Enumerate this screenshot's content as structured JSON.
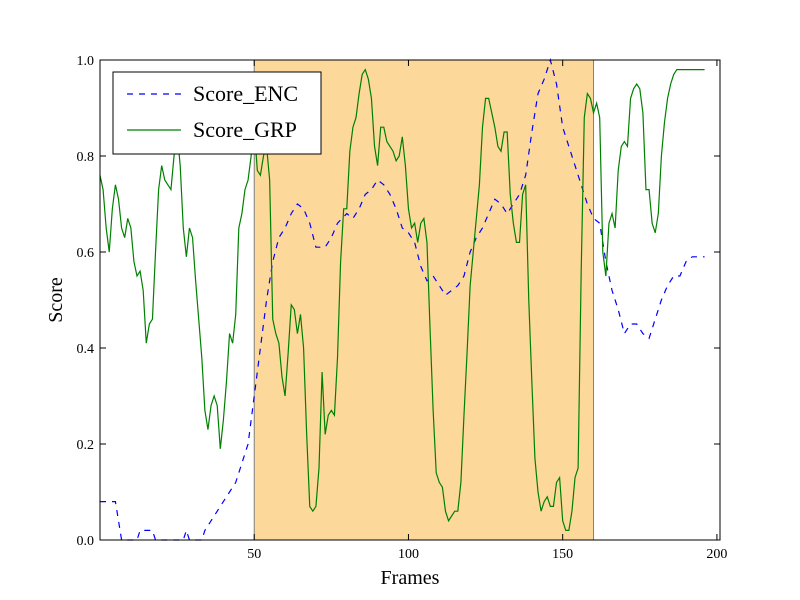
{
  "chart_data": {
    "type": "line",
    "xlabel": "Frames",
    "ylabel": "Score",
    "xlim": [
      0,
      201
    ],
    "ylim": [
      0.0,
      1.0
    ],
    "xticks": [
      50,
      100,
      150,
      200
    ],
    "yticks": [
      0.0,
      0.2,
      0.4,
      0.6,
      0.8,
      1.0
    ],
    "xtick_labels": [
      "50",
      "100",
      "150",
      "200"
    ],
    "ytick_labels": [
      "0.0",
      "0.2",
      "0.4",
      "0.6",
      "0.8",
      "1.0"
    ],
    "highlight": {
      "x_start": 50,
      "x_end": 160,
      "color": "#fcd99a",
      "edge_color": "#808080"
    },
    "legend": {
      "location": "upper-left"
    },
    "grid": false,
    "series": [
      {
        "name": "Score_ENC",
        "color": "#0000ff",
        "style": "dashed",
        "points": [
          [
            0,
            0.08
          ],
          [
            5,
            0.08
          ],
          [
            7,
            0.0
          ],
          [
            12,
            0.0
          ],
          [
            13,
            0.02
          ],
          [
            17,
            0.02
          ],
          [
            18,
            0.0
          ],
          [
            27,
            0.0
          ],
          [
            28,
            0.02
          ],
          [
            29,
            0.0
          ],
          [
            33,
            0.0
          ],
          [
            34,
            0.02
          ],
          [
            36,
            0.04
          ],
          [
            38,
            0.06
          ],
          [
            40,
            0.08
          ],
          [
            42,
            0.1
          ],
          [
            44,
            0.12
          ],
          [
            46,
            0.16
          ],
          [
            48,
            0.2
          ],
          [
            50,
            0.3
          ],
          [
            52,
            0.4
          ],
          [
            54,
            0.5
          ],
          [
            56,
            0.58
          ],
          [
            58,
            0.63
          ],
          [
            60,
            0.65
          ],
          [
            62,
            0.68
          ],
          [
            64,
            0.7
          ],
          [
            66,
            0.69
          ],
          [
            68,
            0.66
          ],
          [
            70,
            0.61
          ],
          [
            73,
            0.61
          ],
          [
            75,
            0.63
          ],
          [
            77,
            0.66
          ],
          [
            80,
            0.68
          ],
          [
            82,
            0.67
          ],
          [
            84,
            0.69
          ],
          [
            86,
            0.72
          ],
          [
            88,
            0.73
          ],
          [
            90,
            0.75
          ],
          [
            92,
            0.74
          ],
          [
            94,
            0.72
          ],
          [
            96,
            0.69
          ],
          [
            98,
            0.65
          ],
          [
            100,
            0.64
          ],
          [
            102,
            0.62
          ],
          [
            104,
            0.57
          ],
          [
            106,
            0.54
          ],
          [
            108,
            0.55
          ],
          [
            110,
            0.53
          ],
          [
            112,
            0.51
          ],
          [
            116,
            0.53
          ],
          [
            118,
            0.55
          ],
          [
            120,
            0.6
          ],
          [
            122,
            0.63
          ],
          [
            124,
            0.65
          ],
          [
            126,
            0.68
          ],
          [
            128,
            0.71
          ],
          [
            130,
            0.7
          ],
          [
            132,
            0.68
          ],
          [
            134,
            0.7
          ],
          [
            136,
            0.72
          ],
          [
            138,
            0.76
          ],
          [
            140,
            0.85
          ],
          [
            142,
            0.93
          ],
          [
            144,
            0.96
          ],
          [
            146,
            1.0
          ],
          [
            148,
            0.95
          ],
          [
            150,
            0.86
          ],
          [
            152,
            0.82
          ],
          [
            154,
            0.78
          ],
          [
            156,
            0.74
          ],
          [
            158,
            0.7
          ],
          [
            160,
            0.67
          ],
          [
            162,
            0.66
          ],
          [
            164,
            0.58
          ],
          [
            166,
            0.52
          ],
          [
            168,
            0.48
          ],
          [
            170,
            0.43
          ],
          [
            172,
            0.45
          ],
          [
            174,
            0.45
          ],
          [
            176,
            0.43
          ],
          [
            178,
            0.42
          ],
          [
            180,
            0.46
          ],
          [
            182,
            0.5
          ],
          [
            184,
            0.53
          ],
          [
            186,
            0.55
          ],
          [
            188,
            0.55
          ],
          [
            190,
            0.58
          ],
          [
            192,
            0.59
          ],
          [
            196,
            0.59
          ]
        ]
      },
      {
        "name": "Score_GRP",
        "color": "#008000",
        "style": "solid",
        "points": [
          [
            0,
            0.76
          ],
          [
            1,
            0.73
          ],
          [
            2,
            0.65
          ],
          [
            3,
            0.6
          ],
          [
            4,
            0.69
          ],
          [
            5,
            0.74
          ],
          [
            6,
            0.71
          ],
          [
            7,
            0.65
          ],
          [
            8,
            0.63
          ],
          [
            9,
            0.67
          ],
          [
            10,
            0.65
          ],
          [
            11,
            0.58
          ],
          [
            12,
            0.55
          ],
          [
            13,
            0.56
          ],
          [
            14,
            0.52
          ],
          [
            15,
            0.41
          ],
          [
            16,
            0.45
          ],
          [
            17,
            0.46
          ],
          [
            18,
            0.6
          ],
          [
            19,
            0.73
          ],
          [
            20,
            0.78
          ],
          [
            21,
            0.75
          ],
          [
            22,
            0.74
          ],
          [
            23,
            0.73
          ],
          [
            24,
            0.8
          ],
          [
            25,
            0.85
          ],
          [
            26,
            0.78
          ],
          [
            27,
            0.65
          ],
          [
            28,
            0.59
          ],
          [
            29,
            0.65
          ],
          [
            30,
            0.63
          ],
          [
            31,
            0.54
          ],
          [
            32,
            0.46
          ],
          [
            33,
            0.38
          ],
          [
            34,
            0.27
          ],
          [
            35,
            0.23
          ],
          [
            36,
            0.28
          ],
          [
            37,
            0.3
          ],
          [
            38,
            0.28
          ],
          [
            39,
            0.19
          ],
          [
            40,
            0.25
          ],
          [
            41,
            0.33
          ],
          [
            42,
            0.43
          ],
          [
            43,
            0.41
          ],
          [
            44,
            0.47
          ],
          [
            45,
            0.65
          ],
          [
            46,
            0.68
          ],
          [
            47,
            0.73
          ],
          [
            48,
            0.75
          ],
          [
            49,
            0.8
          ],
          [
            50,
            0.86
          ],
          [
            51,
            0.77
          ],
          [
            52,
            0.76
          ],
          [
            53,
            0.8
          ],
          [
            54,
            0.82
          ],
          [
            55,
            0.75
          ],
          [
            56,
            0.46
          ],
          [
            57,
            0.43
          ],
          [
            58,
            0.41
          ],
          [
            59,
            0.34
          ],
          [
            60,
            0.3
          ],
          [
            61,
            0.39
          ],
          [
            62,
            0.49
          ],
          [
            63,
            0.48
          ],
          [
            64,
            0.43
          ],
          [
            65,
            0.47
          ],
          [
            66,
            0.4
          ],
          [
            67,
            0.22
          ],
          [
            68,
            0.07
          ],
          [
            69,
            0.06
          ],
          [
            70,
            0.07
          ],
          [
            71,
            0.15
          ],
          [
            72,
            0.35
          ],
          [
            73,
            0.22
          ],
          [
            74,
            0.26
          ],
          [
            75,
            0.27
          ],
          [
            76,
            0.26
          ],
          [
            77,
            0.38
          ],
          [
            78,
            0.58
          ],
          [
            79,
            0.69
          ],
          [
            80,
            0.69
          ],
          [
            81,
            0.81
          ],
          [
            82,
            0.86
          ],
          [
            83,
            0.88
          ],
          [
            84,
            0.93
          ],
          [
            85,
            0.97
          ],
          [
            86,
            0.98
          ],
          [
            87,
            0.96
          ],
          [
            88,
            0.92
          ],
          [
            89,
            0.82
          ],
          [
            90,
            0.78
          ],
          [
            91,
            0.86
          ],
          [
            92,
            0.86
          ],
          [
            93,
            0.83
          ],
          [
            94,
            0.82
          ],
          [
            95,
            0.81
          ],
          [
            96,
            0.79
          ],
          [
            97,
            0.8
          ],
          [
            98,
            0.84
          ],
          [
            99,
            0.78
          ],
          [
            100,
            0.69
          ],
          [
            101,
            0.65
          ],
          [
            102,
            0.66
          ],
          [
            103,
            0.62
          ],
          [
            104,
            0.66
          ],
          [
            105,
            0.67
          ],
          [
            106,
            0.62
          ],
          [
            107,
            0.44
          ],
          [
            108,
            0.27
          ],
          [
            109,
            0.14
          ],
          [
            110,
            0.12
          ],
          [
            111,
            0.11
          ],
          [
            112,
            0.06
          ],
          [
            113,
            0.04
          ],
          [
            114,
            0.05
          ],
          [
            115,
            0.06
          ],
          [
            116,
            0.06
          ],
          [
            117,
            0.12
          ],
          [
            118,
            0.26
          ],
          [
            119,
            0.39
          ],
          [
            120,
            0.53
          ],
          [
            121,
            0.6
          ],
          [
            122,
            0.67
          ],
          [
            123,
            0.74
          ],
          [
            124,
            0.86
          ],
          [
            125,
            0.92
          ],
          [
            126,
            0.92
          ],
          [
            127,
            0.89
          ],
          [
            128,
            0.86
          ],
          [
            129,
            0.82
          ],
          [
            130,
            0.81
          ],
          [
            131,
            0.85
          ],
          [
            132,
            0.85
          ],
          [
            133,
            0.72
          ],
          [
            134,
            0.66
          ],
          [
            135,
            0.62
          ],
          [
            136,
            0.62
          ],
          [
            137,
            0.72
          ],
          [
            138,
            0.74
          ],
          [
            139,
            0.5
          ],
          [
            140,
            0.33
          ],
          [
            141,
            0.17
          ],
          [
            142,
            0.1
          ],
          [
            143,
            0.06
          ],
          [
            144,
            0.08
          ],
          [
            145,
            0.09
          ],
          [
            146,
            0.07
          ],
          [
            147,
            0.07
          ],
          [
            148,
            0.12
          ],
          [
            149,
            0.13
          ],
          [
            150,
            0.04
          ],
          [
            151,
            0.02
          ],
          [
            152,
            0.02
          ],
          [
            153,
            0.06
          ],
          [
            154,
            0.13
          ],
          [
            155,
            0.15
          ],
          [
            156,
            0.56
          ],
          [
            157,
            0.88
          ],
          [
            158,
            0.93
          ],
          [
            159,
            0.92
          ],
          [
            160,
            0.89
          ],
          [
            161,
            0.91
          ],
          [
            162,
            0.88
          ],
          [
            163,
            0.6
          ],
          [
            164,
            0.55
          ],
          [
            165,
            0.66
          ],
          [
            166,
            0.68
          ],
          [
            167,
            0.65
          ],
          [
            168,
            0.77
          ],
          [
            169,
            0.82
          ],
          [
            170,
            0.83
          ],
          [
            171,
            0.82
          ],
          [
            172,
            0.92
          ],
          [
            173,
            0.94
          ],
          [
            174,
            0.95
          ],
          [
            175,
            0.94
          ],
          [
            176,
            0.89
          ],
          [
            177,
            0.73
          ],
          [
            178,
            0.73
          ],
          [
            179,
            0.66
          ],
          [
            180,
            0.64
          ],
          [
            181,
            0.68
          ],
          [
            182,
            0.8
          ],
          [
            183,
            0.87
          ],
          [
            184,
            0.92
          ],
          [
            185,
            0.95
          ],
          [
            186,
            0.97
          ],
          [
            187,
            0.98
          ],
          [
            196,
            0.98
          ]
        ]
      }
    ]
  }
}
